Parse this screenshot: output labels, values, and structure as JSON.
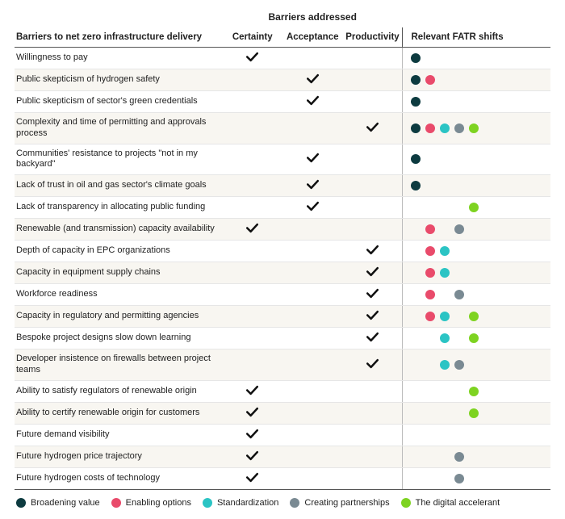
{
  "headers": {
    "barriers_label": "Barriers to net zero infrastructure delivery",
    "group_label": "Barriers addressed",
    "certainty": "Certainty",
    "acceptance": "Acceptance",
    "productivity": "Productivity",
    "shifts_label": "Relevant FATR shifts"
  },
  "shift_colors": {
    "broadening": "#0d3b40",
    "enabling": "#e94b6b",
    "standardization": "#2bc4c4",
    "partnerships": "#7a8a93",
    "digital": "#7ed321"
  },
  "shift_order": [
    "broadening",
    "enabling",
    "standardization",
    "partnerships",
    "digital"
  ],
  "check_color": "#111111",
  "row_alt_bg": "#f8f6f1",
  "border_color": "#555555",
  "rows": [
    {
      "label": "Willingness to pay",
      "certainty": true,
      "acceptance": false,
      "productivity": false,
      "shifts": [
        "broadening"
      ]
    },
    {
      "label": "Public skepticism of hydrogen safety",
      "certainty": false,
      "acceptance": true,
      "productivity": false,
      "shifts": [
        "broadening",
        "enabling"
      ]
    },
    {
      "label": "Public skepticism of sector's green credentials",
      "certainty": false,
      "acceptance": true,
      "productivity": false,
      "shifts": [
        "broadening"
      ]
    },
    {
      "label": "Complexity and time of permitting and approvals process",
      "certainty": false,
      "acceptance": false,
      "productivity": true,
      "shifts": [
        "broadening",
        "enabling",
        "standardization",
        "partnerships",
        "digital"
      ]
    },
    {
      "label": "Communities' resistance to projects \"not in my backyard\"",
      "certainty": false,
      "acceptance": true,
      "productivity": false,
      "shifts": [
        "broadening"
      ]
    },
    {
      "label": "Lack of trust in oil and gas sector's climate goals",
      "certainty": false,
      "acceptance": true,
      "productivity": false,
      "shifts": [
        "broadening"
      ]
    },
    {
      "label": "Lack of transparency in allocating public funding",
      "certainty": false,
      "acceptance": true,
      "productivity": false,
      "shifts": [
        "digital"
      ]
    },
    {
      "label": "Renewable (and transmission) capacity availability",
      "certainty": true,
      "acceptance": false,
      "productivity": false,
      "shifts": [
        "enabling",
        "partnerships"
      ]
    },
    {
      "label": "Depth of capacity in EPC organizations",
      "certainty": false,
      "acceptance": false,
      "productivity": true,
      "shifts": [
        "enabling",
        "standardization"
      ]
    },
    {
      "label": "Capacity in equipment supply chains",
      "certainty": false,
      "acceptance": false,
      "productivity": true,
      "shifts": [
        "enabling",
        "standardization"
      ]
    },
    {
      "label": "Workforce readiness",
      "certainty": false,
      "acceptance": false,
      "productivity": true,
      "shifts": [
        "enabling",
        "partnerships"
      ]
    },
    {
      "label": "Capacity in regulatory and permitting agencies",
      "certainty": false,
      "acceptance": false,
      "productivity": true,
      "shifts": [
        "enabling",
        "standardization",
        "digital"
      ]
    },
    {
      "label": "Bespoke project designs slow down learning",
      "certainty": false,
      "acceptance": false,
      "productivity": true,
      "shifts": [
        "standardization",
        "digital"
      ]
    },
    {
      "label": "Developer insistence on firewalls between project teams",
      "certainty": false,
      "acceptance": false,
      "productivity": true,
      "shifts": [
        "standardization",
        "partnerships"
      ]
    },
    {
      "label": "Ability to satisfy regulators of renewable origin",
      "certainty": true,
      "acceptance": false,
      "productivity": false,
      "shifts": [
        "digital"
      ]
    },
    {
      "label": "Ability to certify renewable origin for customers",
      "certainty": true,
      "acceptance": false,
      "productivity": false,
      "shifts": [
        "digital"
      ]
    },
    {
      "label": "Future demand visibility",
      "certainty": true,
      "acceptance": false,
      "productivity": false,
      "shifts": []
    },
    {
      "label": "Future hydrogen price trajectory",
      "certainty": true,
      "acceptance": false,
      "productivity": false,
      "shifts": [
        "partnerships"
      ]
    },
    {
      "label": "Future hydrogen costs of technology",
      "certainty": true,
      "acceptance": false,
      "productivity": false,
      "shifts": [
        "partnerships"
      ]
    }
  ],
  "legend": [
    {
      "key": "broadening",
      "label": "Broadening value"
    },
    {
      "key": "enabling",
      "label": "Enabling options"
    },
    {
      "key": "standardization",
      "label": "Standardization"
    },
    {
      "key": "partnerships",
      "label": "Creating partnerships"
    },
    {
      "key": "digital",
      "label": "The digital accelerant"
    }
  ]
}
